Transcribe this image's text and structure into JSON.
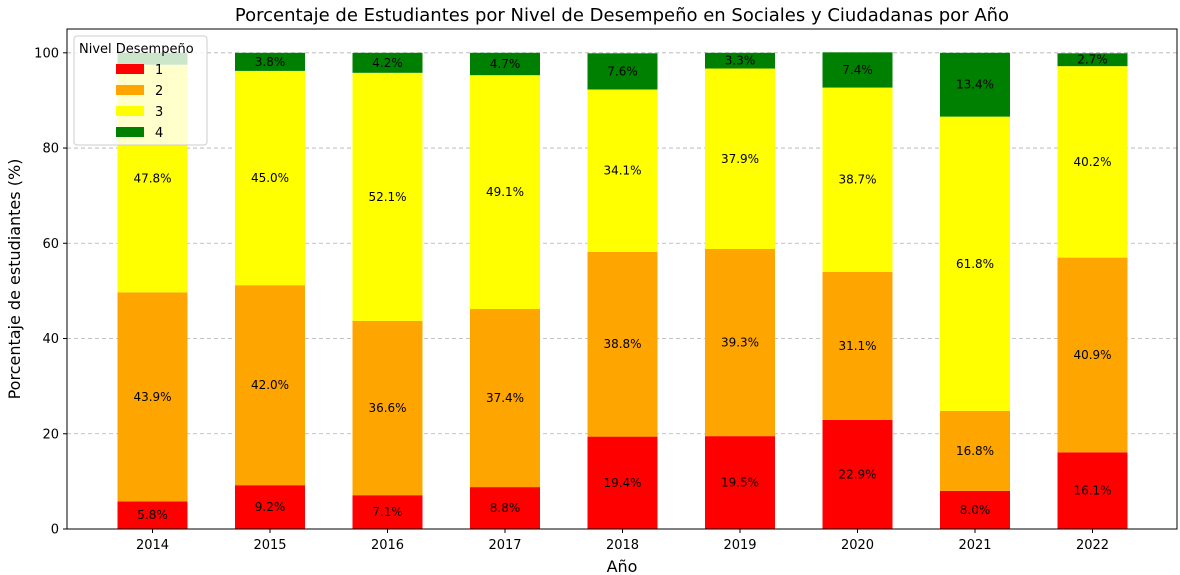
{
  "chart_data": {
    "type": "bar",
    "stacked": true,
    "title": "Porcentaje de Estudiantes por Nivel de Desempeño en Sociales y Ciudadanas por Año",
    "xlabel": "Año",
    "ylabel": "Porcentaje de estudiantes (%)",
    "ylim": [
      0,
      105
    ],
    "yticks": [
      0,
      20,
      40,
      60,
      80,
      100
    ],
    "grid": "y-dashed",
    "categories": [
      "2014",
      "2015",
      "2016",
      "2017",
      "2018",
      "2019",
      "2020",
      "2021",
      "2022"
    ],
    "legend": {
      "title": "Nivel Desempeño",
      "placement": "top-left"
    },
    "series": [
      {
        "name": "1",
        "color": "#ff0000",
        "values": [
          5.8,
          9.2,
          7.1,
          8.8,
          19.4,
          19.5,
          22.9,
          8.0,
          16.1
        ]
      },
      {
        "name": "2",
        "color": "#ffa500",
        "values": [
          43.9,
          42.0,
          36.6,
          37.4,
          38.8,
          39.3,
          31.1,
          16.8,
          40.9
        ]
      },
      {
        "name": "3",
        "color": "#ffff00",
        "values": [
          47.8,
          45.0,
          52.1,
          49.1,
          34.1,
          37.9,
          38.7,
          61.8,
          40.2
        ]
      },
      {
        "name": "4",
        "color": "#008000",
        "values": [
          2.5,
          3.8,
          4.2,
          4.7,
          7.6,
          3.3,
          7.4,
          13.4,
          2.7
        ]
      }
    ],
    "data_labels": [
      [
        "5.8%",
        "9.2%",
        "7.1%",
        "8.8%",
        "19.4%",
        "19.5%",
        "22.9%",
        "8.0%",
        "16.1%"
      ],
      [
        "43.9%",
        "42.0%",
        "36.6%",
        "37.4%",
        "38.8%",
        "39.3%",
        "31.1%",
        "16.8%",
        "40.9%"
      ],
      [
        "47.8%",
        "45.0%",
        "52.1%",
        "49.1%",
        "34.1%",
        "37.9%",
        "38.7%",
        "61.8%",
        "40.2%"
      ],
      [
        "",
        "3.8%",
        "4.2%",
        "4.7%",
        "7.6%",
        "3.3%",
        "7.4%",
        "13.4%",
        "2.7%"
      ]
    ]
  }
}
